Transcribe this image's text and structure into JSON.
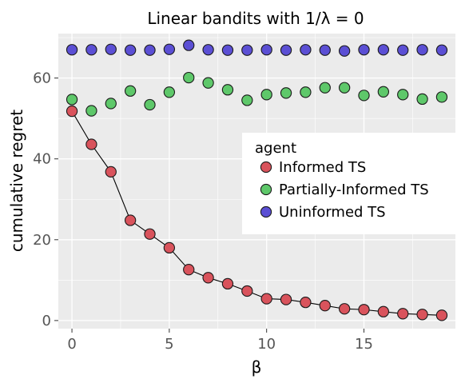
{
  "chart_data": {
    "type": "line",
    "title": "Linear bandits with 1/λ = 0",
    "xlabel": "β",
    "ylabel": "cumulative regret",
    "xlim": [
      -0.7,
      19.7
    ],
    "ylim": [
      -2,
      71
    ],
    "xticks": [
      0,
      5,
      10,
      15
    ],
    "yticks": [
      0,
      20,
      40,
      60
    ],
    "grid": true,
    "legend": {
      "title": "agent",
      "placement": "center-right"
    },
    "x": [
      0,
      1,
      2,
      3,
      4,
      5,
      6,
      7,
      8,
      9,
      10,
      11,
      12,
      13,
      14,
      15,
      16,
      17,
      18,
      19
    ],
    "series": [
      {
        "name": "Informed TS",
        "color": "#d9535c",
        "connected": true,
        "values": [
          51.8,
          43.6,
          36.8,
          24.8,
          21.4,
          18.0,
          12.6,
          10.6,
          9.1,
          7.3,
          5.4,
          5.2,
          4.5,
          3.7,
          2.9,
          2.7,
          2.2,
          1.7,
          1.5,
          1.3
        ]
      },
      {
        "name": "Partially-Informed TS",
        "color": "#5ec86a",
        "connected": false,
        "values": [
          54.7,
          51.9,
          53.7,
          56.8,
          53.4,
          56.5,
          60.1,
          58.8,
          57.1,
          54.5,
          55.9,
          56.3,
          56.5,
          57.6,
          57.6,
          55.7,
          56.6,
          55.9,
          54.8,
          55.3
        ]
      },
      {
        "name": "Uninformed TS",
        "color": "#5b4fd4",
        "connected": false,
        "values": [
          67.0,
          67.0,
          67.1,
          66.9,
          66.9,
          67.1,
          68.1,
          67.0,
          66.9,
          66.9,
          67.0,
          66.9,
          67.0,
          66.9,
          66.7,
          67.0,
          67.0,
          66.9,
          67.0,
          66.9
        ]
      }
    ]
  }
}
